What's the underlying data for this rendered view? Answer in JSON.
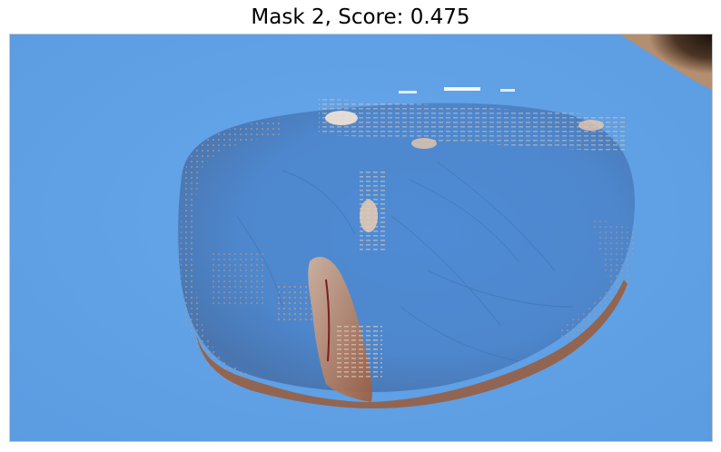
{
  "figure": {
    "title": "Mask 2, Score: 0.475"
  },
  "image": {
    "overlay_color": "#5fa0e6",
    "content_color": "#b9825f"
  }
}
